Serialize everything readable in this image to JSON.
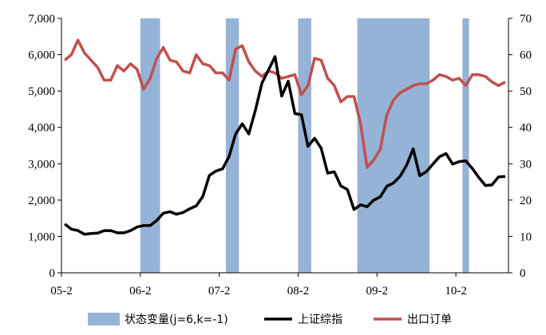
{
  "chart_data": {
    "type": "line",
    "title": "",
    "x_tick_labels": [
      "05-2",
      "06-2",
      "07-2",
      "08-2",
      "09-2",
      "10-2"
    ],
    "x_start": "2005-02",
    "y_left": {
      "label": "",
      "ylim": [
        0,
        7000
      ],
      "ticks": [
        "0",
        "1,000",
        "2,000",
        "3,000",
        "4,000",
        "5,000",
        "6,000",
        "7,000"
      ]
    },
    "y_right": {
      "label": "",
      "ylim": [
        0,
        70
      ],
      "ticks": [
        "0",
        "10",
        "20",
        "30",
        "40",
        "50",
        "60",
        "70"
      ]
    },
    "legend_position": "bottom",
    "series": [
      {
        "name": "状态变量(j=6,k=-1)",
        "type": "shaded-band",
        "color": "#95b3d7",
        "spans": [
          {
            "from": "2006-02",
            "to": "2006-04"
          },
          {
            "from": "2007-03",
            "to": "2007-04"
          },
          {
            "from": "2008-02",
            "to": "2008-03"
          },
          {
            "from": "2008-11",
            "to": "2009-09"
          },
          {
            "from": "2010-03",
            "to": "2010-03"
          }
        ]
      },
      {
        "name": "上证综指",
        "axis": "left",
        "color": "#000000",
        "x": [
          "2005-02",
          "2005-03",
          "2005-04",
          "2005-05",
          "2005-06",
          "2005-07",
          "2005-08",
          "2005-09",
          "2005-10",
          "2005-11",
          "2005-12",
          "2006-01",
          "2006-02",
          "2006-03",
          "2006-04",
          "2006-05",
          "2006-06",
          "2006-07",
          "2006-08",
          "2006-09",
          "2006-10",
          "2006-11",
          "2006-12",
          "2007-01",
          "2007-02",
          "2007-03",
          "2007-04",
          "2007-05",
          "2007-06",
          "2007-07",
          "2007-08",
          "2007-09",
          "2007-10",
          "2007-11",
          "2007-12",
          "2008-01",
          "2008-02",
          "2008-03",
          "2008-04",
          "2008-05",
          "2008-06",
          "2008-07",
          "2008-08",
          "2008-09",
          "2008-10",
          "2008-11",
          "2008-12",
          "2009-01",
          "2009-02",
          "2009-03",
          "2009-04",
          "2009-05",
          "2009-06",
          "2009-07",
          "2009-08",
          "2009-09",
          "2009-10",
          "2009-11",
          "2009-12",
          "2010-01",
          "2010-02",
          "2010-03",
          "2010-04",
          "2010-05",
          "2010-06",
          "2010-07",
          "2010-08",
          "2010-09"
        ],
        "values": [
          1340,
          1200,
          1160,
          1060,
          1080,
          1090,
          1160,
          1160,
          1100,
          1100,
          1160,
          1260,
          1300,
          1300,
          1440,
          1640,
          1680,
          1610,
          1660,
          1760,
          1840,
          2100,
          2680,
          2800,
          2860,
          3200,
          3820,
          4100,
          3820,
          4470,
          5220,
          5580,
          5950,
          4860,
          5270,
          4380,
          4350,
          3480,
          3700,
          3430,
          2740,
          2780,
          2390,
          2290,
          1740,
          1870,
          1820,
          2000,
          2090,
          2380,
          2470,
          2650,
          2960,
          3410,
          2670,
          2780,
          2990,
          3190,
          3280,
          2990,
          3060,
          3080,
          2870,
          2620,
          2400,
          2420,
          2640,
          2650
        ]
      },
      {
        "name": "出口订单",
        "axis": "right",
        "color": "#c0504d",
        "x": [
          "2005-02",
          "2005-03",
          "2005-04",
          "2005-05",
          "2005-06",
          "2005-07",
          "2005-08",
          "2005-09",
          "2005-10",
          "2005-11",
          "2005-12",
          "2006-01",
          "2006-02",
          "2006-03",
          "2006-04",
          "2006-05",
          "2006-06",
          "2006-07",
          "2006-08",
          "2006-09",
          "2006-10",
          "2006-11",
          "2006-12",
          "2007-01",
          "2007-02",
          "2007-03",
          "2007-04",
          "2007-05",
          "2007-06",
          "2007-07",
          "2007-08",
          "2007-09",
          "2007-10",
          "2007-11",
          "2007-12",
          "2008-01",
          "2008-02",
          "2008-03",
          "2008-04",
          "2008-05",
          "2008-06",
          "2008-07",
          "2008-08",
          "2008-09",
          "2008-10",
          "2008-11",
          "2008-12",
          "2009-01",
          "2009-02",
          "2009-03",
          "2009-04",
          "2009-05",
          "2009-06",
          "2009-07",
          "2009-08",
          "2009-09",
          "2009-10",
          "2009-11",
          "2009-12",
          "2010-01",
          "2010-02",
          "2010-03",
          "2010-04",
          "2010-05",
          "2010-06",
          "2010-07",
          "2010-08",
          "2010-09"
        ],
        "values": [
          58.5,
          60.0,
          64.0,
          60.5,
          58.5,
          56.5,
          53.0,
          53.0,
          57.0,
          55.5,
          57.5,
          56.0,
          50.5,
          53.5,
          59.0,
          62.0,
          58.5,
          58.0,
          55.5,
          55.0,
          60.0,
          57.5,
          57.0,
          55.0,
          55.0,
          53.0,
          61.5,
          62.5,
          58.0,
          55.5,
          54.0,
          55.5,
          55.0,
          53.5,
          54.0,
          54.5,
          49.0,
          51.5,
          59.0,
          58.5,
          53.5,
          51.5,
          47.0,
          48.5,
          48.5,
          41.0,
          29.0,
          31.0,
          34.0,
          43.5,
          47.5,
          49.5,
          50.5,
          51.5,
          52.0,
          52.0,
          53.0,
          54.5,
          54.0,
          53.0,
          53.5,
          51.5,
          54.5,
          54.5,
          54.0,
          52.5,
          51.5,
          52.5
        ]
      }
    ]
  }
}
